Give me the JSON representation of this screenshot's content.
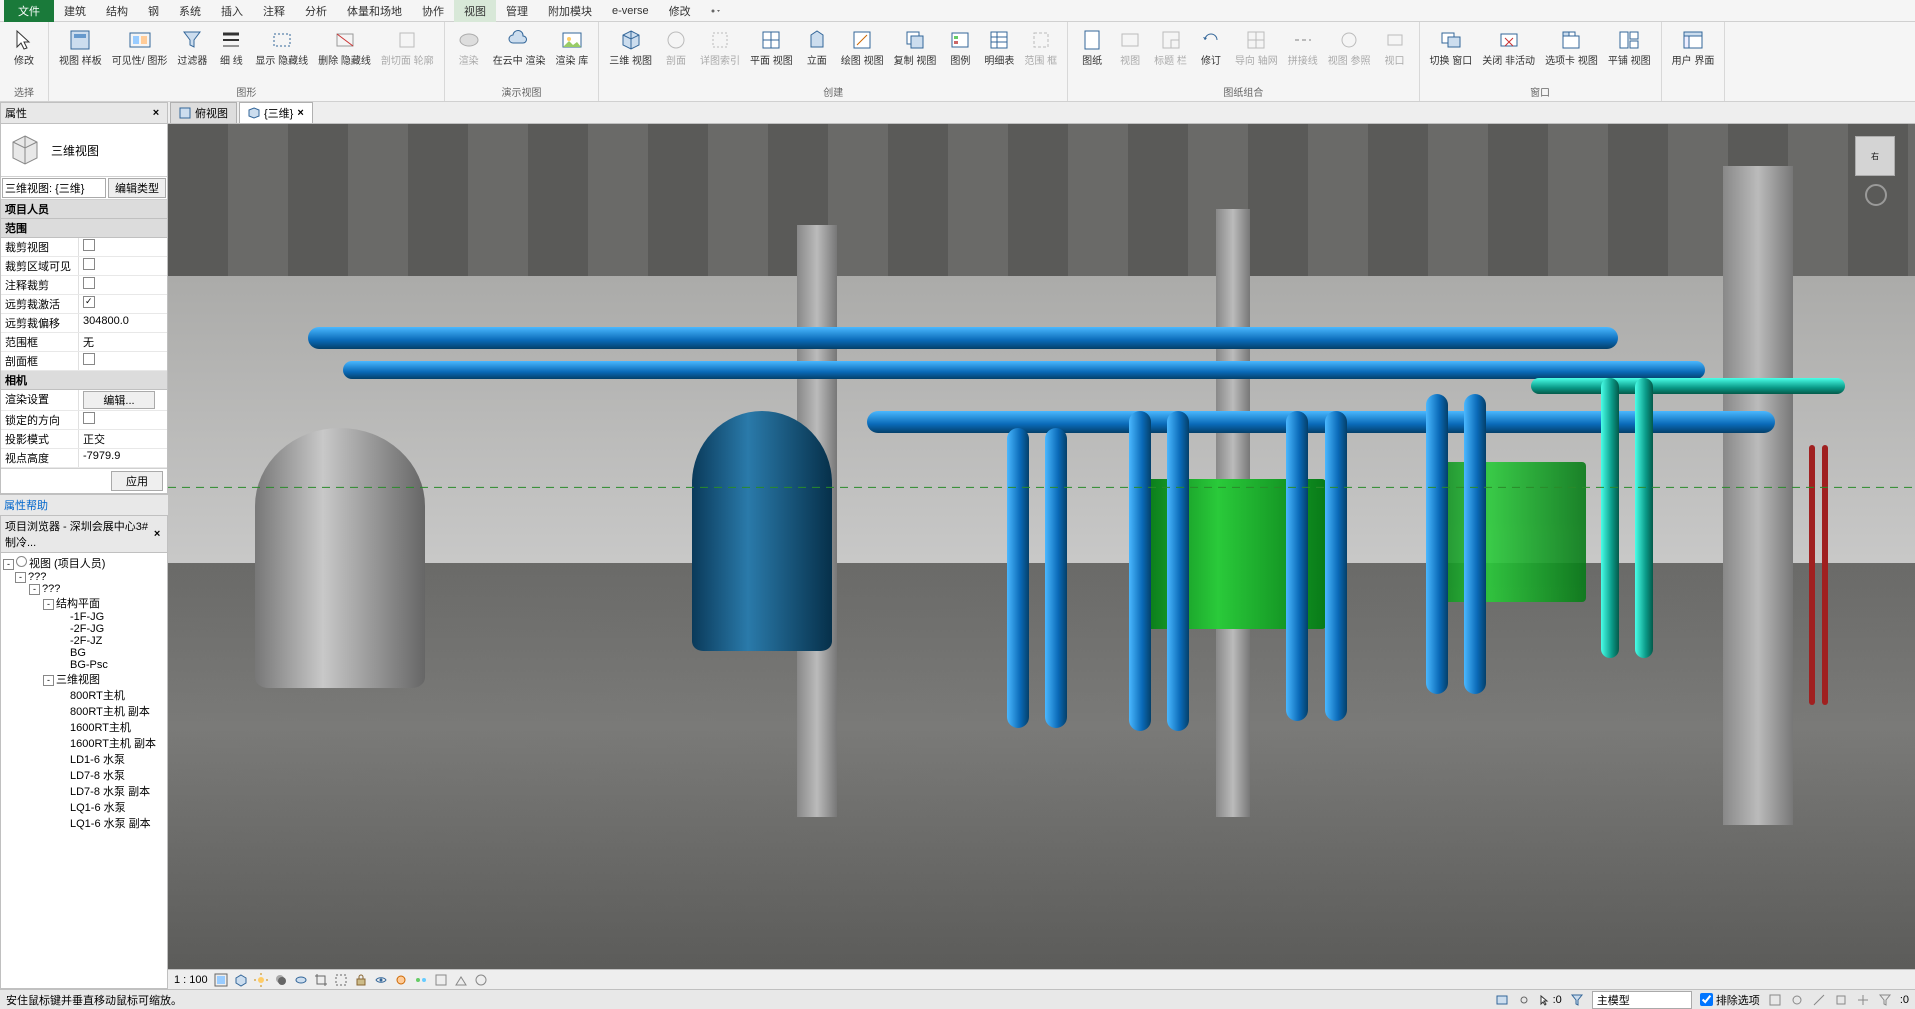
{
  "menu": {
    "items": [
      "文件",
      "建筑",
      "结构",
      "钢",
      "系统",
      "插入",
      "注释",
      "分析",
      "体量和场地",
      "协作",
      "视图",
      "管理",
      "附加模块",
      "e-verse",
      "修改"
    ],
    "active_index": 10
  },
  "ribbon": {
    "groups": [
      {
        "name": "选择",
        "buttons": [
          {
            "label": "修改",
            "icon": "cursor"
          }
        ]
      },
      {
        "name": "图形",
        "buttons": [
          {
            "label": "视图\n样板",
            "icon": "template"
          },
          {
            "label": "可见性/\n图形",
            "icon": "vis"
          },
          {
            "label": "过滤器",
            "icon": "filter"
          },
          {
            "label": "细\n线",
            "icon": "thin"
          },
          {
            "label": "显示\n隐藏线",
            "icon": "show"
          },
          {
            "label": "删除\n隐藏线",
            "icon": "del"
          },
          {
            "label": "剖切面\n轮廓",
            "icon": "cut",
            "disabled": true
          }
        ]
      },
      {
        "name": "演示视图",
        "buttons": [
          {
            "label": "渲染",
            "icon": "render",
            "disabled": true
          },
          {
            "label": "在云中\n渲染",
            "icon": "cloud"
          },
          {
            "label": "渲染\n库",
            "icon": "gallery"
          }
        ]
      },
      {
        "name": "创建",
        "buttons": [
          {
            "label": "三维\n视图",
            "icon": "3d"
          },
          {
            "label": "剖面",
            "icon": "section",
            "disabled": true
          },
          {
            "label": "详图索引",
            "icon": "callout",
            "disabled": true
          },
          {
            "label": "平面\n视图",
            "icon": "plan"
          },
          {
            "label": "立面",
            "icon": "elev"
          },
          {
            "label": "绘图\n视图",
            "icon": "draft"
          },
          {
            "label": "复制\n视图",
            "icon": "dup"
          },
          {
            "label": "图例",
            "icon": "legend"
          },
          {
            "label": "明细表",
            "icon": "sched"
          },
          {
            "label": "范围\n框",
            "icon": "scope",
            "disabled": true
          }
        ]
      },
      {
        "name": "图纸组合",
        "buttons": [
          {
            "label": "图纸",
            "icon": "sheet"
          },
          {
            "label": "视图",
            "icon": "view",
            "disabled": true
          },
          {
            "label": "标题\n栏",
            "icon": "title",
            "disabled": true
          },
          {
            "label": "修订",
            "icon": "rev"
          },
          {
            "label": "导向\n轴网",
            "icon": "guide",
            "disabled": true
          },
          {
            "label": "拼接线",
            "icon": "match",
            "disabled": true
          },
          {
            "label": "视图\n参照",
            "icon": "ref",
            "disabled": true
          },
          {
            "label": "视口",
            "icon": "vp",
            "disabled": true
          }
        ]
      },
      {
        "name": "窗口",
        "buttons": [
          {
            "label": "切换\n窗口",
            "icon": "switch"
          },
          {
            "label": "关闭\n非活动",
            "icon": "close"
          },
          {
            "label": "选项卡\n视图",
            "icon": "tabs"
          },
          {
            "label": "平铺\n视图",
            "icon": "tile"
          }
        ]
      },
      {
        "name": "",
        "buttons": [
          {
            "label": "用户\n界面",
            "icon": "ui"
          }
        ]
      }
    ]
  },
  "properties": {
    "title": "属性",
    "type_name": "三维视图",
    "selector": "三维视图: {三维}",
    "edit_type": "编辑类型",
    "sections": [
      {
        "name": "项目人员",
        "rows": []
      },
      {
        "name": "范围",
        "rows": [
          {
            "k": "裁剪视图",
            "v": "",
            "chk": false
          },
          {
            "k": "裁剪区域可见",
            "v": "",
            "chk": false
          },
          {
            "k": "注释裁剪",
            "v": "",
            "chk": false
          },
          {
            "k": "远剪裁激活",
            "v": "",
            "chk": true
          },
          {
            "k": "远剪裁偏移",
            "v": "304800.0"
          },
          {
            "k": "范围框",
            "v": "无"
          },
          {
            "k": "剖面框",
            "v": "",
            "chk": false
          }
        ]
      },
      {
        "name": "相机",
        "rows": [
          {
            "k": "渲染设置",
            "v": "编辑...",
            "btn": true
          },
          {
            "k": "锁定的方向",
            "v": "",
            "chk": false
          },
          {
            "k": "投影模式",
            "v": "正交"
          },
          {
            "k": "视点高度",
            "v": "-7979.9"
          }
        ]
      }
    ],
    "apply": "应用",
    "help": "属性帮助"
  },
  "browser": {
    "title": "项目浏览器 - 深圳会展中心3#制冷...",
    "root": "视图 (项目人员)",
    "tree": [
      {
        "d": 1,
        "t": "???",
        "e": "-"
      },
      {
        "d": 2,
        "t": "???",
        "e": "-"
      },
      {
        "d": 3,
        "t": "结构平面",
        "e": "-"
      },
      {
        "d": 4,
        "t": "-1F-JG"
      },
      {
        "d": 4,
        "t": "-2F-JG"
      },
      {
        "d": 4,
        "t": "-2F-JZ"
      },
      {
        "d": 4,
        "t": "BG"
      },
      {
        "d": 4,
        "t": "BG-Psc"
      },
      {
        "d": 3,
        "t": "三维视图",
        "e": "-"
      },
      {
        "d": 4,
        "t": "800RT主机"
      },
      {
        "d": 4,
        "t": "800RT主机 副本"
      },
      {
        "d": 4,
        "t": "1600RT主机"
      },
      {
        "d": 4,
        "t": "1600RT主机 副本"
      },
      {
        "d": 4,
        "t": "LD1-6 水泵"
      },
      {
        "d": 4,
        "t": "LD7-8 水泵"
      },
      {
        "d": 4,
        "t": "LD7-8 水泵 副本"
      },
      {
        "d": 4,
        "t": "LQ1-6 水泵"
      },
      {
        "d": 4,
        "t": "LQ1-6 水泵 副本"
      }
    ]
  },
  "tabs": [
    {
      "label": "俯视图",
      "active": false
    },
    {
      "label": "{三维}",
      "active": true
    }
  ],
  "viewcube_label": "右",
  "viewctrl": {
    "scale": "1 : 100"
  },
  "status": {
    "hint": "安住鼠标键并垂直移动鼠标可缩放。",
    "zero": ":0",
    "model": "主模型",
    "exclude": "排除选项"
  },
  "colors": {
    "pipe_blue": "#0a6ab8",
    "pipe_teal": "#0a9a88",
    "machine_green": "#1aa82a",
    "tank_grey": "#9a9a9a",
    "tank_blue": "#1a5a8a",
    "red": "#a02020"
  }
}
